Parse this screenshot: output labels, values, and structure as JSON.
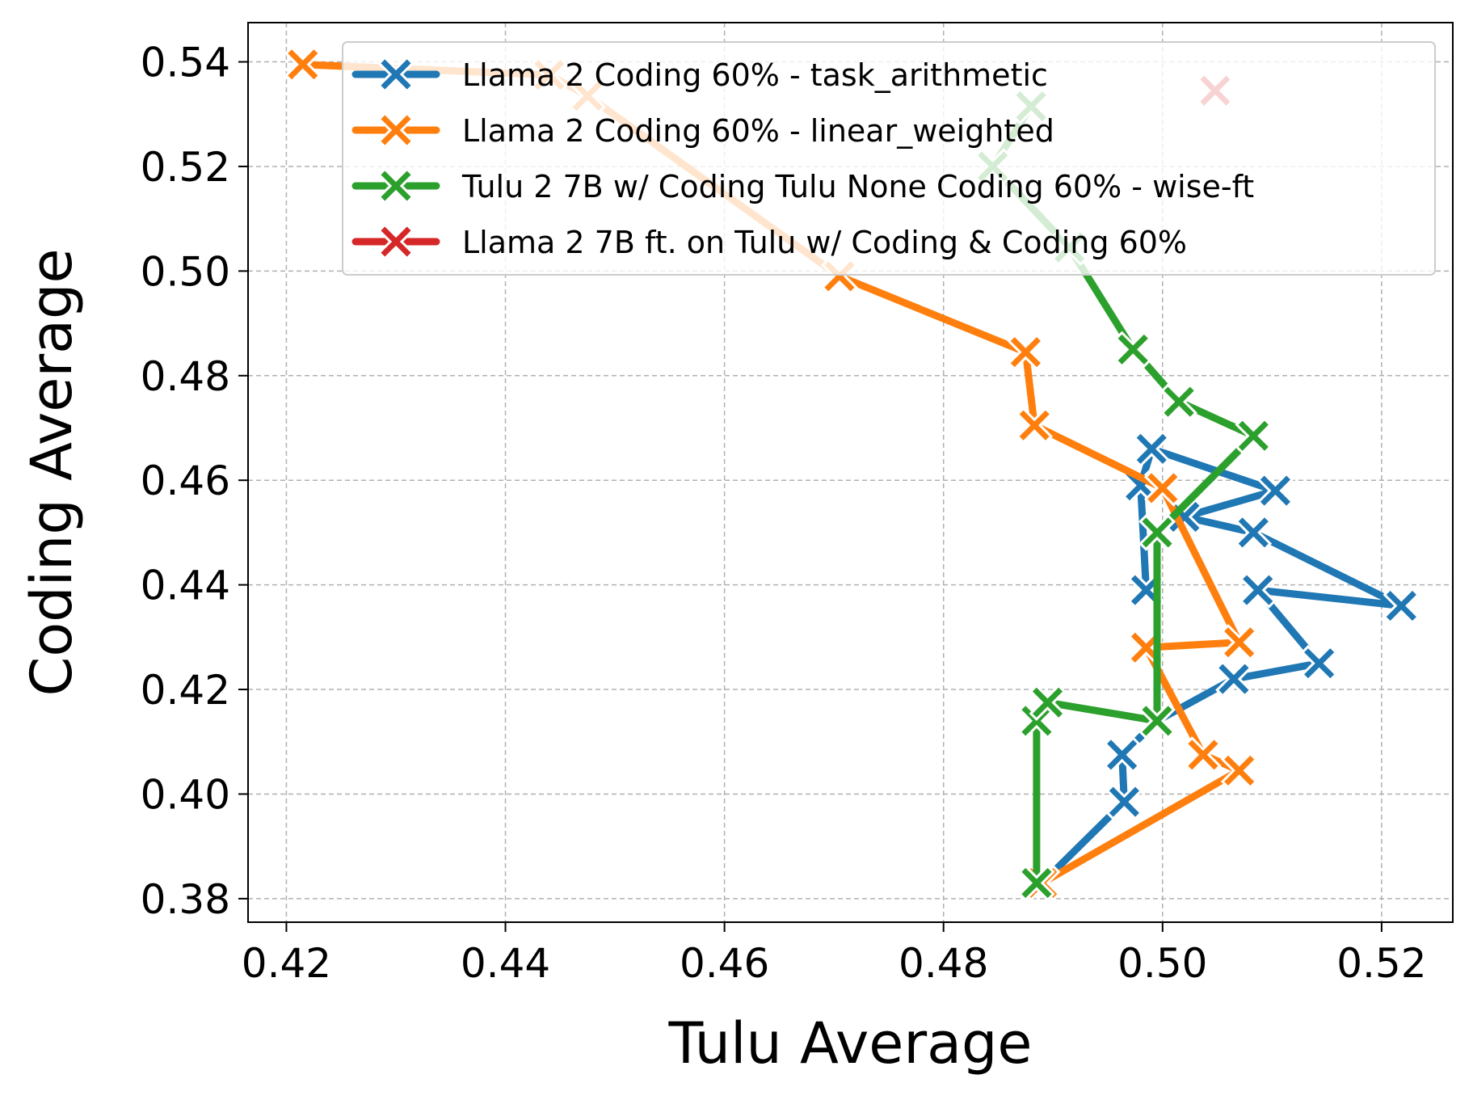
{
  "chart_data": {
    "type": "line",
    "title": "",
    "xlabel": "Tulu Average",
    "ylabel": "Coding Average",
    "xlim": [
      0.4165,
      0.5265
    ],
    "ylim": [
      0.3755,
      0.5475
    ],
    "xticks": [
      0.42,
      0.44,
      0.46,
      0.48,
      0.5,
      0.52
    ],
    "yticks": [
      0.38,
      0.4,
      0.42,
      0.44,
      0.46,
      0.48,
      0.5,
      0.52,
      0.54
    ],
    "xtick_labels": [
      "0.42",
      "0.44",
      "0.46",
      "0.48",
      "0.50",
      "0.52"
    ],
    "ytick_labels": [
      "0.38",
      "0.40",
      "0.42",
      "0.44",
      "0.46",
      "0.48",
      "0.50",
      "0.52",
      "0.54"
    ],
    "grid": true,
    "legend_position": "upper right",
    "marker": "X",
    "series": [
      {
        "name": "Llama 2 Coding 60% - task_arithmetic",
        "color": "#1f77b4",
        "points": [
          [
            0.489,
            0.383
          ],
          [
            0.4965,
            0.3985
          ],
          [
            0.4963,
            0.4075
          ],
          [
            0.4995,
            0.414
          ],
          [
            0.5065,
            0.422
          ],
          [
            0.5143,
            0.425
          ],
          [
            0.5087,
            0.439
          ],
          [
            0.5218,
            0.436
          ],
          [
            0.5083,
            0.45
          ],
          [
            0.502,
            0.453
          ],
          [
            0.5103,
            0.458
          ],
          [
            0.499,
            0.466
          ],
          [
            0.498,
            0.459
          ],
          [
            0.4985,
            0.439
          ]
        ]
      },
      {
        "name": "Llama 2 Coding 60% - linear_weighted",
        "color": "#ff7f0e",
        "points": [
          [
            0.489,
            0.383
          ],
          [
            0.507,
            0.4045
          ],
          [
            0.5037,
            0.4075
          ],
          [
            0.4985,
            0.428
          ],
          [
            0.507,
            0.429
          ],
          [
            0.5,
            0.4585
          ],
          [
            0.4883,
            0.4705
          ],
          [
            0.4875,
            0.4845
          ],
          [
            0.4705,
            0.499
          ],
          [
            0.4475,
            0.5335
          ],
          [
            0.444,
            0.5375
          ],
          [
            0.4215,
            0.5395
          ]
        ]
      },
      {
        "name": "Tulu 2 7B w/ Coding Tulu None Coding 60% - wise-ft",
        "color": "#2ca02c",
        "points": [
          [
            0.4885,
            0.383
          ],
          [
            0.4885,
            0.414
          ],
          [
            0.4895,
            0.4175
          ],
          [
            0.4995,
            0.414
          ],
          [
            0.4995,
            0.45
          ],
          [
            0.5083,
            0.4685
          ],
          [
            0.5015,
            0.475
          ],
          [
            0.4973,
            0.485
          ],
          [
            0.4915,
            0.5045
          ],
          [
            0.4845,
            0.52
          ],
          [
            0.488,
            0.5315
          ]
        ]
      },
      {
        "name": "Llama 2 7B ft. on Tulu w/ Coding & Coding 60%",
        "color": "#d62728",
        "points": [
          [
            0.5048,
            0.5345
          ]
        ]
      }
    ]
  }
}
